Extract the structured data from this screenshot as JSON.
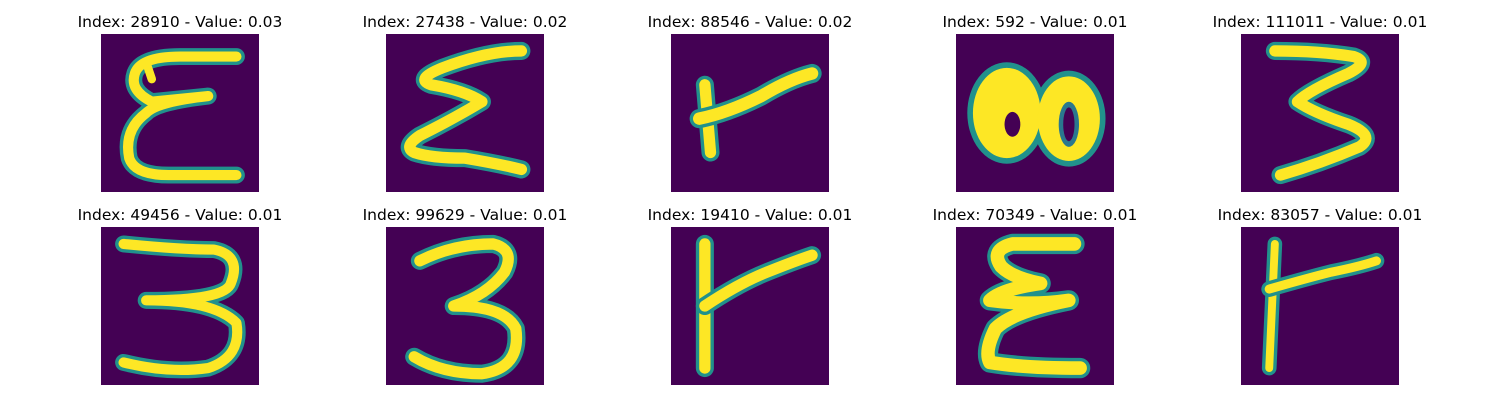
{
  "colors": {
    "background": "#440154",
    "stroke_mid": "#21918c",
    "stroke_high": "#fde725",
    "stroke_peak": "#e6e419"
  },
  "panels": [
    {
      "title": "Index: 28910 - Value: 0.03",
      "glyph": "epsilon-stacked"
    },
    {
      "title": "Index: 27438 - Value: 0.02",
      "glyph": "sigma-zigzag"
    },
    {
      "title": "Index: 88546 - Value: 0.02",
      "glyph": "r-slanted"
    },
    {
      "title": "Index: 592 - Value: 0.01",
      "glyph": "blob-figure-eight"
    },
    {
      "title": "Index: 111011 - Value: 0.01",
      "glyph": "three-zigzag"
    },
    {
      "title": "Index: 49456 - Value: 0.01",
      "glyph": "three-wide"
    },
    {
      "title": "Index: 99629 - Value: 0.01",
      "glyph": "three-round"
    },
    {
      "title": "Index: 19410 - Value: 0.01",
      "glyph": "r-tall"
    },
    {
      "title": "Index: 70349 - Value: 0.01",
      "glyph": "epsilon-thick"
    },
    {
      "title": "Index: 83057 - Value: 0.01",
      "glyph": "r-thin"
    }
  ]
}
